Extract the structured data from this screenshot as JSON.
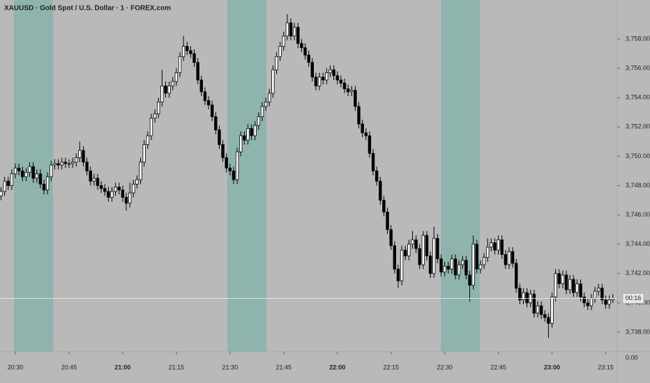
{
  "chart_data": {
    "type": "candlestick",
    "title": "XAUUSD · Gold Spot / U.S. Dollar · 1 · FOREX.com",
    "x": [
      "20:26",
      "20:27",
      "20:28",
      "20:29",
      "20:30",
      "20:31",
      "20:32",
      "20:33",
      "20:34",
      "20:35",
      "20:36",
      "20:37",
      "20:38",
      "20:39",
      "20:40",
      "20:41",
      "20:42",
      "20:43",
      "20:44",
      "20:45",
      "20:46",
      "20:47",
      "20:48",
      "20:49",
      "20:50",
      "20:51",
      "20:52",
      "20:53",
      "20:54",
      "20:55",
      "20:56",
      "20:57",
      "20:58",
      "20:59",
      "21:00",
      "21:01",
      "21:02",
      "21:03",
      "21:04",
      "21:05",
      "21:06",
      "21:07",
      "21:08",
      "21:09",
      "21:10",
      "21:11",
      "21:12",
      "21:13",
      "21:14",
      "21:15",
      "21:16",
      "21:17",
      "21:18",
      "21:19",
      "21:20",
      "21:21",
      "21:22",
      "21:23",
      "21:24",
      "21:25",
      "21:26",
      "21:27",
      "21:28",
      "21:29",
      "21:30",
      "21:31",
      "21:32",
      "21:33",
      "21:34",
      "21:35",
      "21:36",
      "21:37",
      "21:38",
      "21:39",
      "21:40",
      "21:41",
      "21:42",
      "21:43",
      "21:44",
      "21:45",
      "21:46",
      "21:47",
      "21:48",
      "21:49",
      "21:50",
      "21:51",
      "21:52",
      "21:53",
      "21:54",
      "21:55",
      "21:56",
      "21:57",
      "21:58",
      "21:59",
      "22:00",
      "22:01",
      "22:02",
      "22:03",
      "22:04",
      "22:05",
      "22:06",
      "22:07",
      "22:08",
      "22:09",
      "22:10",
      "22:11",
      "22:12",
      "22:13",
      "22:14",
      "22:15",
      "22:16",
      "22:17",
      "22:18",
      "22:19",
      "22:20",
      "22:21",
      "22:22",
      "22:23",
      "22:24",
      "22:25",
      "22:26",
      "22:27",
      "22:28",
      "22:29",
      "22:30",
      "22:31",
      "22:32",
      "22:33",
      "22:34",
      "22:35",
      "22:36",
      "22:37",
      "22:38",
      "22:39",
      "22:40",
      "22:41",
      "22:42",
      "22:43",
      "22:44",
      "22:45",
      "22:46",
      "22:47",
      "22:48",
      "22:49",
      "22:50",
      "22:51",
      "22:52",
      "22:53",
      "22:54",
      "22:55",
      "22:56",
      "22:57",
      "22:58",
      "22:59",
      "23:00",
      "23:01",
      "23:02",
      "23:03",
      "23:04",
      "23:05",
      "23:06",
      "23:07",
      "23:08",
      "23:09",
      "23:10",
      "23:11",
      "23:12",
      "23:13",
      "23:14",
      "23:15",
      "23:16",
      "23:17"
    ],
    "values": [
      [
        3747.3,
        3747.9,
        3747.0,
        3747.6
      ],
      [
        3747.6,
        3748.6,
        3747.3,
        3748.3
      ],
      [
        3748.3,
        3748.6,
        3747.7,
        3748.0
      ],
      [
        3748.0,
        3749.1,
        3747.7,
        3748.8
      ],
      [
        3748.8,
        3749.5,
        3748.5,
        3749.2
      ],
      [
        3749.2,
        3749.5,
        3748.7,
        3749.0
      ],
      [
        3749.0,
        3749.3,
        3748.3,
        3748.6
      ],
      [
        3748.6,
        3749.2,
        3748.3,
        3748.9
      ],
      [
        3748.9,
        3749.6,
        3748.6,
        3749.3
      ],
      [
        3749.3,
        3749.6,
        3748.2,
        3748.5
      ],
      [
        3748.5,
        3749.1,
        3748.2,
        3748.8
      ],
      [
        3748.8,
        3749.1,
        3747.8,
        3748.1
      ],
      [
        3748.1,
        3748.4,
        3747.4,
        3747.7
      ],
      [
        3747.7,
        3748.9,
        3747.4,
        3748.6
      ],
      [
        3748.6,
        3749.7,
        3748.3,
        3749.4
      ],
      [
        3749.4,
        3749.8,
        3749.1,
        3749.5
      ],
      [
        3749.5,
        3749.8,
        3749.1,
        3749.4
      ],
      [
        3749.4,
        3749.9,
        3749.1,
        3749.6
      ],
      [
        3749.6,
        3749.9,
        3749.2,
        3749.5
      ],
      [
        3749.5,
        3749.8,
        3749.2,
        3749.5
      ],
      [
        3749.5,
        3749.9,
        3749.2,
        3749.6
      ],
      [
        3749.6,
        3750.2,
        3749.3,
        3749.9
      ],
      [
        3749.9,
        3751.0,
        3749.6,
        3750.4
      ],
      [
        3750.4,
        3750.7,
        3749.3,
        3749.6
      ],
      [
        3749.6,
        3749.9,
        3748.7,
        3749.0
      ],
      [
        3749.0,
        3749.3,
        3748.0,
        3748.3
      ],
      [
        3748.3,
        3748.8,
        3748.0,
        3748.5
      ],
      [
        3748.5,
        3748.8,
        3747.7,
        3748.0
      ],
      [
        3748.0,
        3748.3,
        3747.5,
        3747.8
      ],
      [
        3747.8,
        3748.1,
        3747.3,
        3747.6
      ],
      [
        3747.6,
        3747.9,
        3746.9,
        3747.2
      ],
      [
        3747.2,
        3747.9,
        3746.9,
        3747.6
      ],
      [
        3747.6,
        3748.2,
        3747.3,
        3747.9
      ],
      [
        3747.9,
        3748.2,
        3747.4,
        3747.7
      ],
      [
        3747.7,
        3748.0,
        3746.9,
        3747.2
      ],
      [
        3747.2,
        3747.5,
        3746.3,
        3746.8
      ],
      [
        3746.8,
        3748.2,
        3746.5,
        3747.5
      ],
      [
        3747.5,
        3748.4,
        3747.2,
        3748.1
      ],
      [
        3748.1,
        3748.7,
        3747.8,
        3748.4
      ],
      [
        3748.4,
        3749.9,
        3748.1,
        3749.6
      ],
      [
        3749.6,
        3751.1,
        3749.3,
        3750.8
      ],
      [
        3750.8,
        3751.7,
        3750.5,
        3751.4
      ],
      [
        3751.4,
        3752.9,
        3751.1,
        3752.6
      ],
      [
        3752.6,
        3753.2,
        3752.3,
        3752.9
      ],
      [
        3752.9,
        3754.0,
        3752.6,
        3753.7
      ],
      [
        3753.7,
        3755.9,
        3753.4,
        3754.8
      ],
      [
        3754.8,
        3755.1,
        3754.0,
        3754.3
      ],
      [
        3754.3,
        3755.1,
        3754.0,
        3754.8
      ],
      [
        3754.8,
        3755.4,
        3754.5,
        3755.1
      ],
      [
        3755.1,
        3756.0,
        3754.8,
        3755.7
      ],
      [
        3755.7,
        3757.1,
        3755.4,
        3756.8
      ],
      [
        3756.8,
        3758.2,
        3756.5,
        3757.5
      ],
      [
        3757.5,
        3757.8,
        3756.9,
        3757.2
      ],
      [
        3757.2,
        3757.5,
        3756.7,
        3757.0
      ],
      [
        3757.0,
        3757.3,
        3756.1,
        3756.4
      ],
      [
        3756.4,
        3756.7,
        3754.9,
        3755.2
      ],
      [
        3755.2,
        3755.5,
        3754.1,
        3754.4
      ],
      [
        3754.4,
        3754.7,
        3753.5,
        3753.8
      ],
      [
        3753.8,
        3754.1,
        3753.2,
        3753.5
      ],
      [
        3753.5,
        3753.8,
        3752.4,
        3752.7
      ],
      [
        3752.7,
        3753.0,
        3751.5,
        3751.8
      ],
      [
        3751.8,
        3752.1,
        3750.5,
        3750.8
      ],
      [
        3750.8,
        3751.1,
        3749.6,
        3749.9
      ],
      [
        3749.9,
        3750.2,
        3748.9,
        3749.2
      ],
      [
        3749.2,
        3749.5,
        3748.7,
        3749.0
      ],
      [
        3749.0,
        3749.3,
        3748.1,
        3748.4
      ],
      [
        3748.4,
        3750.6,
        3748.1,
        3750.3
      ],
      [
        3750.3,
        3751.7,
        3750.0,
        3751.4
      ],
      [
        3751.4,
        3751.7,
        3750.8,
        3751.1
      ],
      [
        3751.1,
        3752.2,
        3750.8,
        3751.9
      ],
      [
        3751.9,
        3752.2,
        3751.1,
        3751.4
      ],
      [
        3751.4,
        3752.4,
        3751.1,
        3752.1
      ],
      [
        3752.1,
        3753.0,
        3751.8,
        3752.7
      ],
      [
        3752.7,
        3753.7,
        3752.4,
        3753.4
      ],
      [
        3753.4,
        3754.0,
        3753.1,
        3753.7
      ],
      [
        3753.7,
        3754.6,
        3753.4,
        3754.3
      ],
      [
        3754.3,
        3756.2,
        3754.0,
        3755.9
      ],
      [
        3755.9,
        3757.1,
        3755.6,
        3756.8
      ],
      [
        3756.8,
        3757.8,
        3756.5,
        3757.5
      ],
      [
        3757.5,
        3758.5,
        3757.2,
        3758.2
      ],
      [
        3758.2,
        3759.7,
        3757.9,
        3759.1
      ],
      [
        3759.1,
        3759.4,
        3757.9,
        3758.2
      ],
      [
        3758.2,
        3759.1,
        3757.9,
        3758.8
      ],
      [
        3758.8,
        3759.1,
        3757.4,
        3757.7
      ],
      [
        3757.7,
        3758.0,
        3757.1,
        3757.4
      ],
      [
        3757.4,
        3757.7,
        3756.6,
        3756.9
      ],
      [
        3756.9,
        3757.2,
        3756.1,
        3756.4
      ],
      [
        3756.4,
        3756.7,
        3755.1,
        3755.4
      ],
      [
        3755.4,
        3755.7,
        3754.5,
        3754.8
      ],
      [
        3754.8,
        3755.7,
        3754.5,
        3755.4
      ],
      [
        3755.4,
        3755.7,
        3754.9,
        3755.2
      ],
      [
        3755.2,
        3756.0,
        3754.9,
        3755.7
      ],
      [
        3755.7,
        3756.2,
        3755.4,
        3755.9
      ],
      [
        3755.9,
        3756.2,
        3755.2,
        3755.5
      ],
      [
        3755.5,
        3755.8,
        3754.9,
        3755.2
      ],
      [
        3755.2,
        3755.5,
        3754.7,
        3755.0
      ],
      [
        3755.0,
        3755.3,
        3754.3,
        3754.6
      ],
      [
        3754.6,
        3754.9,
        3754.1,
        3754.4
      ],
      [
        3754.4,
        3754.8,
        3754.1,
        3754.5
      ],
      [
        3754.5,
        3754.8,
        3753.1,
        3753.4
      ],
      [
        3753.4,
        3753.7,
        3751.9,
        3752.2
      ],
      [
        3752.2,
        3752.5,
        3751.3,
        3751.6
      ],
      [
        3751.6,
        3751.9,
        3751.1,
        3751.4
      ],
      [
        3751.4,
        3751.7,
        3749.9,
        3750.2
      ],
      [
        3750.2,
        3750.5,
        3748.7,
        3749.0
      ],
      [
        3749.0,
        3749.3,
        3748.0,
        3748.3
      ],
      [
        3748.3,
        3748.6,
        3746.7,
        3747.0
      ],
      [
        3747.0,
        3747.3,
        3745.9,
        3746.2
      ],
      [
        3746.2,
        3746.5,
        3744.7,
        3745.0
      ],
      [
        3745.0,
        3745.3,
        3743.6,
        3743.9
      ],
      [
        3743.9,
        3744.2,
        3742.0,
        3742.3
      ],
      [
        3742.3,
        3742.6,
        3741.0,
        3741.5
      ],
      [
        3741.5,
        3743.9,
        3741.2,
        3743.6
      ],
      [
        3743.6,
        3743.9,
        3742.9,
        3743.2
      ],
      [
        3743.2,
        3744.3,
        3742.9,
        3744.0
      ],
      [
        3744.0,
        3744.9,
        3743.7,
        3744.3
      ],
      [
        3744.3,
        3744.6,
        3743.4,
        3743.7
      ],
      [
        3743.7,
        3744.0,
        3742.3,
        3742.6
      ],
      [
        3742.6,
        3744.9,
        3742.3,
        3744.6
      ],
      [
        3744.6,
        3744.9,
        3742.9,
        3743.2
      ],
      [
        3743.2,
        3743.5,
        3741.7,
        3742.0
      ],
      [
        3742.0,
        3745.2,
        3741.7,
        3744.4
      ],
      [
        3744.4,
        3744.7,
        3742.7,
        3743.0
      ],
      [
        3743.0,
        3743.3,
        3741.8,
        3742.1
      ],
      [
        3742.1,
        3742.8,
        3741.8,
        3742.5
      ],
      [
        3742.5,
        3742.8,
        3742.0,
        3742.3
      ],
      [
        3742.3,
        3743.3,
        3742.0,
        3743.0
      ],
      [
        3743.0,
        3743.3,
        3741.6,
        3741.9
      ],
      [
        3741.9,
        3742.9,
        3741.6,
        3742.6
      ],
      [
        3742.6,
        3743.2,
        3742.3,
        3742.9
      ],
      [
        3742.9,
        3743.2,
        3741.6,
        3741.9
      ],
      [
        3741.9,
        3742.2,
        3740.1,
        3741.2
      ],
      [
        3741.2,
        3744.6,
        3740.9,
        3744.0
      ],
      [
        3744.0,
        3744.3,
        3742.0,
        3742.3
      ],
      [
        3742.3,
        3742.9,
        3742.0,
        3742.6
      ],
      [
        3742.6,
        3743.4,
        3742.3,
        3743.1
      ],
      [
        3743.1,
        3744.4,
        3742.8,
        3743.8
      ],
      [
        3743.8,
        3744.4,
        3743.5,
        3744.1
      ],
      [
        3744.1,
        3744.4,
        3743.3,
        3743.6
      ],
      [
        3743.6,
        3744.6,
        3743.3,
        3744.3
      ],
      [
        3744.3,
        3744.6,
        3743.0,
        3743.3
      ],
      [
        3743.3,
        3743.6,
        3742.3,
        3742.6
      ],
      [
        3742.6,
        3743.8,
        3742.3,
        3743.5
      ],
      [
        3743.5,
        3743.8,
        3742.4,
        3742.7
      ],
      [
        3742.7,
        3743.0,
        3740.7,
        3741.0
      ],
      [
        3741.0,
        3741.3,
        3739.9,
        3740.2
      ],
      [
        3740.2,
        3741.0,
        3739.9,
        3740.7
      ],
      [
        3740.7,
        3741.0,
        3739.7,
        3740.0
      ],
      [
        3740.0,
        3740.9,
        3739.7,
        3740.6
      ],
      [
        3740.6,
        3740.9,
        3739.0,
        3739.3
      ],
      [
        3739.3,
        3740.1,
        3739.0,
        3739.8
      ],
      [
        3739.8,
        3740.1,
        3738.9,
        3739.2
      ],
      [
        3739.2,
        3739.5,
        3738.7,
        3739.0
      ],
      [
        3739.0,
        3739.3,
        3737.6,
        3738.6
      ],
      [
        3738.6,
        3740.7,
        3738.3,
        3740.4
      ],
      [
        3740.4,
        3742.3,
        3740.1,
        3742.0
      ],
      [
        3742.0,
        3742.3,
        3741.0,
        3741.3
      ],
      [
        3741.3,
        3742.2,
        3741.0,
        3741.9
      ],
      [
        3741.9,
        3742.2,
        3740.6,
        3740.9
      ],
      [
        3740.9,
        3741.9,
        3740.6,
        3741.6
      ],
      [
        3741.6,
        3741.9,
        3740.4,
        3740.7
      ],
      [
        3740.7,
        3741.6,
        3740.4,
        3741.3
      ],
      [
        3741.3,
        3741.6,
        3740.1,
        3740.4
      ],
      [
        3740.4,
        3740.7,
        3739.7,
        3740.0
      ],
      [
        3740.0,
        3740.3,
        3739.5,
        3739.8
      ],
      [
        3739.8,
        3740.6,
        3739.5,
        3740.3
      ],
      [
        3740.3,
        3741.1,
        3740.0,
        3740.8
      ],
      [
        3740.8,
        3741.3,
        3740.5,
        3741.0
      ],
      [
        3741.0,
        3741.3,
        3739.9,
        3740.2
      ],
      [
        3740.2,
        3740.5,
        3739.6,
        3739.9
      ],
      [
        3739.9,
        3740.5,
        3739.6,
        3740.2
      ],
      [
        3740.2,
        3740.6,
        3740.0,
        3740.3
      ]
    ],
    "up_color": "#ffffff",
    "down_color": "#000000",
    "ylim": [
      3736.67,
      3760.66
    ],
    "yticks": [
      {
        "value": 3738,
        "label": "3,738.00"
      },
      {
        "value": 3740,
        "label": "3,740.00"
      },
      {
        "value": 3742,
        "label": "3,742.00"
      },
      {
        "value": 3744,
        "label": "3,744.00"
      },
      {
        "value": 3746,
        "label": "3,746.00"
      },
      {
        "value": 3748,
        "label": "3,748.00"
      },
      {
        "value": 3750,
        "label": "3,750.00"
      },
      {
        "value": 3752,
        "label": "3,752.00"
      },
      {
        "value": 3754,
        "label": "3,754.00"
      },
      {
        "value": 3756,
        "label": "3,756.00"
      },
      {
        "value": 3758,
        "label": "3,758.00"
      }
    ],
    "xticks": [
      "20:30",
      "20:45",
      "21:00",
      "21:15",
      "21:30",
      "21:45",
      "22:00",
      "22:15",
      "22:30",
      "22:45",
      "23:00",
      "23:15"
    ],
    "countdown_label": "00:16",
    "volume_scale_label": "0.00"
  }
}
